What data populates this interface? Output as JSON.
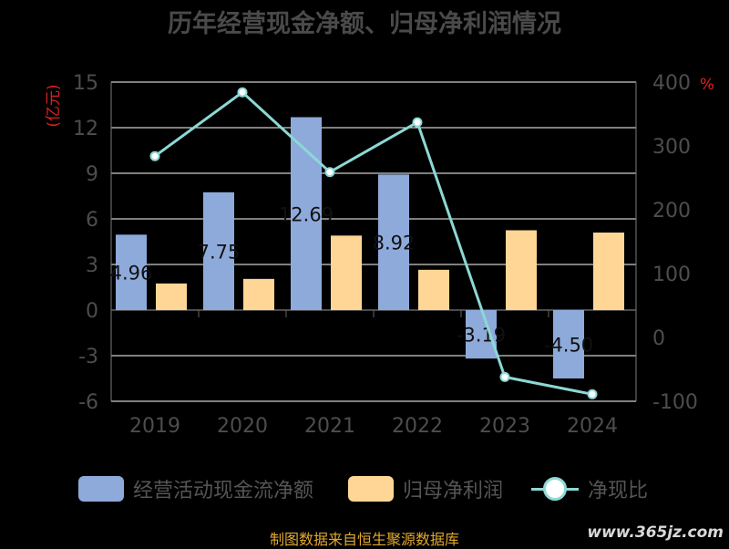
{
  "chart_data": {
    "type": "bar",
    "title": "历年经营现金净额、归母净利润情况",
    "categories": [
      "2019",
      "2020",
      "2021",
      "2022",
      "2023",
      "2024"
    ],
    "left_axis": {
      "label": "亿元",
      "min": -6,
      "max": 15,
      "ticks": [
        "15",
        "12",
        "9",
        "6",
        "3",
        "0",
        "-3",
        "-6"
      ]
    },
    "right_axis": {
      "label": "%",
      "min": -100,
      "max": 400,
      "ticks": [
        "400",
        "300",
        "200",
        "100",
        "0",
        "-100"
      ]
    },
    "grid": true,
    "legend_position": "bottom",
    "series": [
      {
        "name": "经营活动现金流净额",
        "kind": "bar",
        "axis": "left",
        "color": "#8eaadb",
        "values": [
          4.96,
          7.75,
          12.69,
          8.92,
          -3.19,
          -4.5
        ],
        "labels": [
          "4.96",
          "7.75",
          "12.69",
          "8.92",
          "-3.19",
          "-4.50"
        ]
      },
      {
        "name": "归母净利润",
        "kind": "bar",
        "axis": "left",
        "color": "#ffd696",
        "values": [
          1.75,
          2.05,
          4.9,
          2.65,
          5.25,
          5.1
        ]
      },
      {
        "name": "净现比",
        "kind": "line",
        "axis": "right",
        "color": "#8dd8d5",
        "values": [
          284,
          384,
          259,
          337,
          -62,
          -89
        ]
      }
    ]
  },
  "source_text": "制图数据来自恒生聚源数据库",
  "watermark_text": "www.365jz.com"
}
